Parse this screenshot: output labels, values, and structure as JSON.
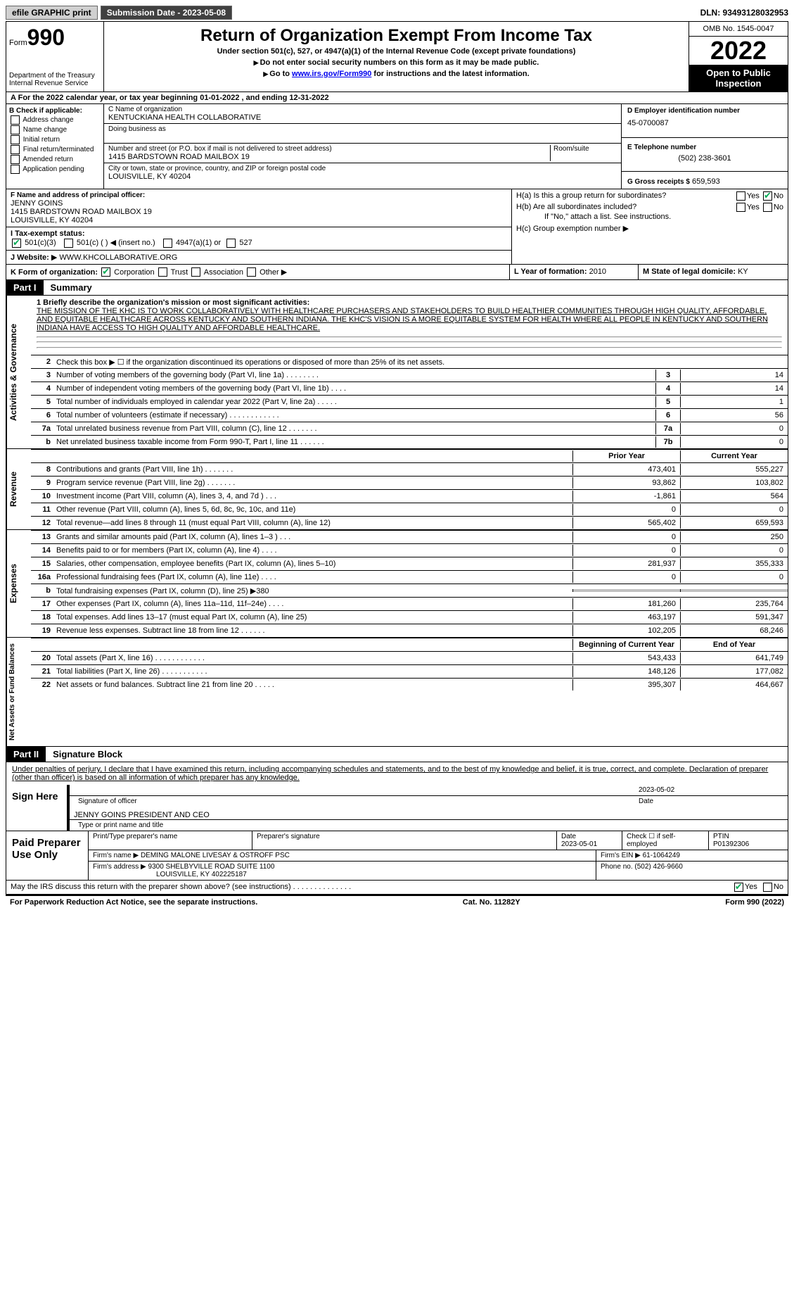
{
  "top": {
    "efile": "efile GRAPHIC print",
    "submission": "Submission Date - 2023-05-08",
    "dln": "DLN: 93493128032953"
  },
  "header": {
    "form_label": "Form",
    "form_num": "990",
    "dept": "Department of the Treasury Internal Revenue Service",
    "title": "Return of Organization Exempt From Income Tax",
    "sub": "Under section 501(c), 527, or 4947(a)(1) of the Internal Revenue Code (except private foundations)",
    "inst1": "Do not enter social security numbers on this form as it may be made public.",
    "inst2_a": "Go to ",
    "inst2_link": "www.irs.gov/Form990",
    "inst2_b": " for instructions and the latest information.",
    "omb": "OMB No. 1545-0047",
    "year": "2022",
    "open": "Open to Public Inspection"
  },
  "a": "For the 2022 calendar year, or tax year beginning 01-01-2022   , and ending 12-31-2022",
  "b": {
    "label": "B Check if applicable:",
    "opts": [
      "Address change",
      "Name change",
      "Initial return",
      "Final return/terminated",
      "Amended return",
      "Application pending"
    ]
  },
  "c": {
    "name_lbl": "C Name of organization",
    "name": "KENTUCKIANA HEALTH COLLABORATIVE",
    "dba_lbl": "Doing business as",
    "street_lbl": "Number and street (or P.O. box if mail is not delivered to street address)",
    "street": "1415 BARDSTOWN ROAD MAILBOX 19",
    "room_lbl": "Room/suite",
    "city_lbl": "City or town, state or province, country, and ZIP or foreign postal code",
    "city": "LOUISVILLE, KY  40204"
  },
  "d": {
    "ein_lbl": "D Employer identification number",
    "ein": "45-0700087",
    "phone_lbl": "E Telephone number",
    "phone": "(502) 238-3601",
    "gross_lbl": "G Gross receipts $",
    "gross": "659,593"
  },
  "f": {
    "lbl": "F  Name and address of principal officer:",
    "name": "JENNY GOINS",
    "addr1": "1415 BARDSTOWN ROAD MAILBOX 19",
    "addr2": "LOUISVILLE, KY  40204"
  },
  "h": {
    "a": "H(a)  Is this a group return for subordinates?",
    "b": "H(b)  Are all subordinates included?",
    "b_note": "If \"No,\" attach a list. See instructions.",
    "c": "H(c)  Group exemption number"
  },
  "i": {
    "lbl": "I   Tax-exempt status:",
    "o1": "501(c)(3)",
    "o2": "501(c) (  )",
    "o2b": "(insert no.)",
    "o3": "4947(a)(1) or",
    "o4": "527"
  },
  "j": {
    "lbl": "J   Website:",
    "val": "WWW.KHCOLLABORATIVE.ORG"
  },
  "k": {
    "lbl": "K Form of organization:",
    "o1": "Corporation",
    "o2": "Trust",
    "o3": "Association",
    "o4": "Other"
  },
  "l": {
    "lbl": "L Year of formation:",
    "val": "2010"
  },
  "m": {
    "lbl": "M State of legal domicile:",
    "val": "KY"
  },
  "part1": {
    "num": "Part I",
    "title": "Summary"
  },
  "mission": {
    "lbl": "1   Briefly describe the organization's mission or most significant activities:",
    "txt": "THE MISSION OF THE KHC IS TO WORK COLLABORATIVELY WITH HEALTHCARE PURCHASERS AND STAKEHOLDERS TO BUILD HEALTHIER COMMUNITIES THROUGH HIGH QUALITY, AFFORDABLE, AND EQUITABLE HEALTHCARE ACROSS KENTUCKY AND SOUTHERN INDIANA. THE KHC'S VISION IS A MORE EQUITABLE SYSTEM FOR HEALTH WHERE ALL PEOPLE IN KENTUCKY AND SOUTHERN INDIANA HAVE ACCESS TO HIGH QUALITY AND AFFORDABLE HEALTHCARE."
  },
  "lines_gov": [
    {
      "n": "2",
      "d": "Check this box ▶ ☐  if the organization discontinued its operations or disposed of more than 25% of its net assets."
    },
    {
      "n": "3",
      "d": "Number of voting members of the governing body (Part VI, line 1a)   .   .   .   .   .   .   .   .",
      "bn": "3",
      "bv": "14"
    },
    {
      "n": "4",
      "d": "Number of independent voting members of the governing body (Part VI, line 1b)   .   .   .   .",
      "bn": "4",
      "bv": "14"
    },
    {
      "n": "5",
      "d": "Total number of individuals employed in calendar year 2022 (Part V, line 2a)   .   .   .   .   .",
      "bn": "5",
      "bv": "1"
    },
    {
      "n": "6",
      "d": "Total number of volunteers (estimate if necessary)   .   .   .   .   .   .   .   .   .   .   .   .",
      "bn": "6",
      "bv": "56"
    },
    {
      "n": "7a",
      "d": "Total unrelated business revenue from Part VIII, column (C), line 12   .   .   .   .   .   .   .",
      "bn": "7a",
      "bv": "0"
    },
    {
      "n": "b",
      "d": "Net unrelated business taxable income from Form 990-T, Part I, line 11   .   .   .   .   .   .",
      "bn": "7b",
      "bv": "0"
    }
  ],
  "col_hdr": {
    "prior": "Prior Year",
    "curr": "Current Year"
  },
  "lines_rev": [
    {
      "n": "8",
      "d": "Contributions and grants (Part VIII, line 1h)   .   .   .   .   .   .   .",
      "p": "473,401",
      "c": "555,227"
    },
    {
      "n": "9",
      "d": "Program service revenue (Part VIII, line 2g)   .   .   .   .   .   .   .",
      "p": "93,862",
      "c": "103,802"
    },
    {
      "n": "10",
      "d": "Investment income (Part VIII, column (A), lines 3, 4, and 7d )   .   .   .",
      "p": "-1,861",
      "c": "564"
    },
    {
      "n": "11",
      "d": "Other revenue (Part VIII, column (A), lines 5, 6d, 8c, 9c, 10c, and 11e)",
      "p": "0",
      "c": "0"
    },
    {
      "n": "12",
      "d": "Total revenue—add lines 8 through 11 (must equal Part VIII, column (A), line 12)",
      "p": "565,402",
      "c": "659,593"
    }
  ],
  "lines_exp": [
    {
      "n": "13",
      "d": "Grants and similar amounts paid (Part IX, column (A), lines 1–3 )   .   .   .",
      "p": "0",
      "c": "250"
    },
    {
      "n": "14",
      "d": "Benefits paid to or for members (Part IX, column (A), line 4)   .   .   .   .",
      "p": "0",
      "c": "0"
    },
    {
      "n": "15",
      "d": "Salaries, other compensation, employee benefits (Part IX, column (A), lines 5–10)",
      "p": "281,937",
      "c": "355,333"
    },
    {
      "n": "16a",
      "d": "Professional fundraising fees (Part IX, column (A), line 11e)   .   .   .   .",
      "p": "0",
      "c": "0"
    },
    {
      "n": "b",
      "d": "Total fundraising expenses (Part IX, column (D), line 25) ▶380",
      "p": "",
      "c": "",
      "shade": true
    },
    {
      "n": "17",
      "d": "Other expenses (Part IX, column (A), lines 11a–11d, 11f–24e)   .   .   .   .",
      "p": "181,260",
      "c": "235,764"
    },
    {
      "n": "18",
      "d": "Total expenses. Add lines 13–17 (must equal Part IX, column (A), line 25)",
      "p": "463,197",
      "c": "591,347"
    },
    {
      "n": "19",
      "d": "Revenue less expenses. Subtract line 18 from line 12   .   .   .   .   .   .",
      "p": "102,205",
      "c": "68,246"
    }
  ],
  "col_hdr2": {
    "prior": "Beginning of Current Year",
    "curr": "End of Year"
  },
  "lines_net": [
    {
      "n": "20",
      "d": "Total assets (Part X, line 16)   .   .   .   .   .   .   .   .   .   .   .   .",
      "p": "543,433",
      "c": "641,749"
    },
    {
      "n": "21",
      "d": "Total liabilities (Part X, line 26)   .   .   .   .   .   .   .   .   .   .   .",
      "p": "148,126",
      "c": "177,082"
    },
    {
      "n": "22",
      "d": "Net assets or fund balances. Subtract line 21 from line 20   .   .   .   .   .",
      "p": "395,307",
      "c": "464,667"
    }
  ],
  "sides": {
    "gov": "Activities & Governance",
    "rev": "Revenue",
    "exp": "Expenses",
    "net": "Net Assets or Fund Balances"
  },
  "part2": {
    "num": "Part II",
    "title": "Signature Block"
  },
  "sig": {
    "penalty": "Under penalties of perjury, I declare that I have examined this return, including accompanying schedules and statements, and to the best of my knowledge and belief, it is true, correct, and complete. Declaration of preparer (other than officer) is based on all information of which preparer has any knowledge.",
    "sign_here": "Sign Here",
    "sig_lbl": "Signature of officer",
    "date_lbl": "Date",
    "date": "2023-05-02",
    "name": "JENNY GOINS  PRESIDENT AND CEO",
    "name_lbl": "Type or print name and title"
  },
  "prep": {
    "title": "Paid Preparer Use Only",
    "h1": "Print/Type preparer's name",
    "h2": "Preparer's signature",
    "h3": "Date",
    "date": "2023-05-01",
    "h4": "Check ☐ if self-employed",
    "h5": "PTIN",
    "ptin": "P01392306",
    "firm_lbl": "Firm's name   ▶",
    "firm": "DEMING MALONE LIVESAY & OSTROFF PSC",
    "ein_lbl": "Firm's EIN ▶",
    "ein": "61-1064249",
    "addr_lbl": "Firm's address ▶",
    "addr1": "9300 SHELBYVILLE ROAD SUITE 1100",
    "addr2": "LOUISVILLE, KY  402225187",
    "phone_lbl": "Phone no.",
    "phone": "(502) 426-9660"
  },
  "discuss": "May the IRS discuss this return with the preparer shown above? (see instructions)   .   .   .   .   .   .   .   .   .   .   .   .   .   .",
  "footer": {
    "pra": "For Paperwork Reduction Act Notice, see the separate instructions.",
    "cat": "Cat. No. 11282Y",
    "form": "Form 990 (2022)"
  }
}
